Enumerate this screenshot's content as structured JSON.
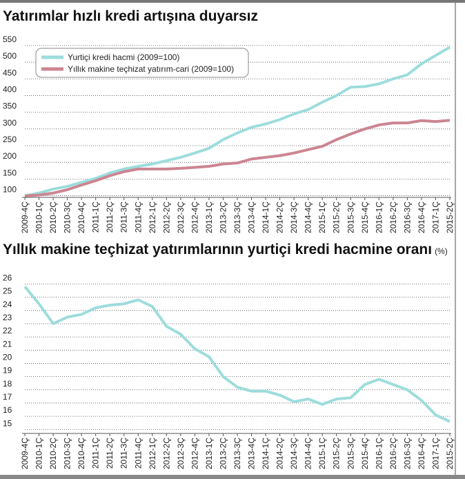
{
  "chart_data": [
    {
      "type": "line",
      "title": "Yatırımlar hızlı kredi artışına duyarsız",
      "categories": [
        "2009-4Ç",
        "2010-1Ç",
        "2010-2Ç",
        "2010-3Ç",
        "2010-4Ç",
        "2011-1Ç",
        "2011-2Ç",
        "2011-3Ç",
        "2011-4Ç",
        "2012-1Ç",
        "2012-2Ç",
        "2012-3Ç",
        "2012-4Ç",
        "2013-1Ç",
        "2013-2Ç",
        "2013-3Ç",
        "2013-4Ç",
        "2014-1Ç",
        "2014-2Ç",
        "2014-3Ç",
        "2014-4Ç",
        "2015-1Ç",
        "2015-2Ç",
        "2015-3Ç",
        "2015-4Ç",
        "2016-1Ç",
        "2016-2Ç",
        "2016-3Ç",
        "2016-4Ç",
        "2017-1Ç",
        "2015-2Ç"
      ],
      "series": [
        {
          "name": "Yurtiçi kredi hacmi (2009=100)",
          "color": "#9ddcdc",
          "values": [
            100,
            108,
            120,
            128,
            140,
            152,
            168,
            180,
            188,
            195,
            205,
            215,
            228,
            242,
            268,
            288,
            305,
            315,
            328,
            345,
            358,
            380,
            400,
            425,
            427,
            435,
            450,
            462,
            495,
            520,
            545
          ]
        },
        {
          "name": "Yıllık makine teçhizat yatırım-cari (2009=100)",
          "color": "#cc8592",
          "values": [
            100,
            102,
            108,
            118,
            132,
            145,
            160,
            172,
            180,
            180,
            180,
            182,
            185,
            188,
            195,
            198,
            210,
            215,
            220,
            228,
            238,
            248,
            268,
            285,
            300,
            312,
            318,
            318,
            325,
            322,
            326
          ]
        }
      ],
      "ylim": [
        95,
        558
      ],
      "yticks": [
        100,
        150,
        200,
        250,
        300,
        350,
        400,
        450,
        500,
        550
      ],
      "grid": true,
      "legend": "top-left"
    },
    {
      "type": "line",
      "title": "Yıllık makine teçhizat yatırımlarının yurtiçi kredi hacmine oranı",
      "unit": "(%)",
      "categories": [
        "2009-4Ç",
        "2010-1Ç",
        "2010-2Ç",
        "2010-3Ç",
        "2010-4Ç",
        "2011-1Ç",
        "2011-2Ç",
        "2011-3Ç",
        "2011-4Ç",
        "2012-1Ç",
        "2012-2Ç",
        "2012-3Ç",
        "2012-4Ç",
        "2013-1Ç",
        "2013-2Ç",
        "2013-3Ç",
        "2013-4Ç",
        "2014-1Ç",
        "2014-2Ç",
        "2014-3Ç",
        "2014-4Ç",
        "2015-1Ç",
        "2015-2Ç",
        "2015-3Ç",
        "2015-4Ç",
        "2016-1Ç",
        "2016-2Ç",
        "2016-3Ç",
        "2016-4Ç",
        "2017-1Ç",
        "2015-2Ç"
      ],
      "values": [
        25.8,
        24.5,
        23.0,
        23.5,
        23.7,
        24.2,
        24.4,
        24.5,
        24.8,
        24.3,
        22.8,
        22.2,
        21.1,
        20.5,
        19.0,
        18.2,
        17.9,
        17.9,
        17.6,
        17.1,
        17.3,
        16.9,
        17.3,
        17.4,
        18.4,
        18.8,
        18.4,
        18.0,
        17.2,
        16.1,
        15.6
      ],
      "color": "#9ddcdc",
      "ylim": [
        14.7,
        26.6
      ],
      "yticks": [
        15,
        16,
        17,
        18,
        19,
        20,
        21,
        22,
        23,
        24,
        25,
        26
      ],
      "grid": true
    }
  ]
}
